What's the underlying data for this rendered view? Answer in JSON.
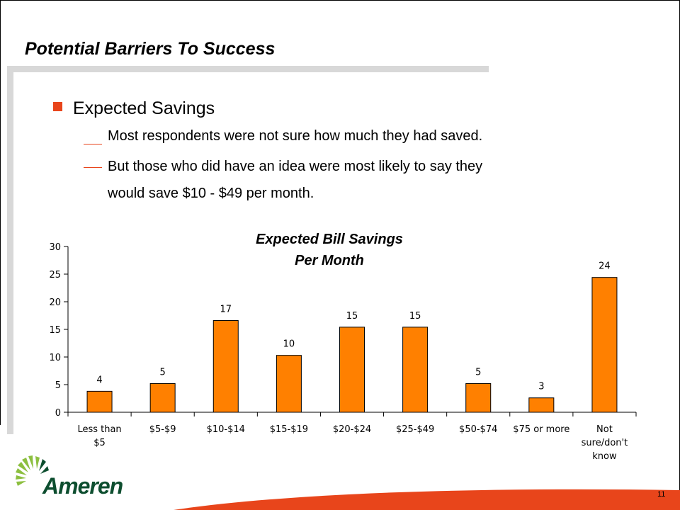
{
  "slide": {
    "title": "Potential Barriers To Success",
    "bullet": "Expected Savings",
    "sub_bullets": [
      "Most respondents were not sure how much they had saved.",
      "But those who did have an idea were most likely to say they",
      "would save $10 - $49 per month."
    ],
    "logo_text": "Ameren",
    "page_number": "11"
  },
  "colors": {
    "bar": "#ff8000",
    "bar_outline": "#000000",
    "accent": "#e8451b",
    "rule": "#d8d8d8",
    "logo": "#0d4e2f"
  },
  "chart_data": {
    "type": "bar",
    "title_lines": [
      "Expected Bill Savings",
      "Per Month"
    ],
    "categories": [
      [
        "Less than",
        "$5"
      ],
      [
        "$5-$9"
      ],
      [
        "$10-$14"
      ],
      [
        "$15-$19"
      ],
      [
        "$20-$24"
      ],
      [
        "$25-$49"
      ],
      [
        "$50-$74"
      ],
      [
        "$75 or more"
      ],
      [
        "Not",
        "sure/don't",
        "know"
      ]
    ],
    "values": [
      3.8,
      5.2,
      16.6,
      10.3,
      15.4,
      15.4,
      5.2,
      2.6,
      24.4
    ],
    "data_labels": [
      "4",
      "5",
      "17",
      "10",
      "15",
      "15",
      "5",
      "3",
      "24"
    ],
    "ylim": [
      0,
      30
    ],
    "yticks": [
      0,
      5,
      10,
      15,
      20,
      25,
      30
    ],
    "grid": false,
    "legend": "none"
  }
}
